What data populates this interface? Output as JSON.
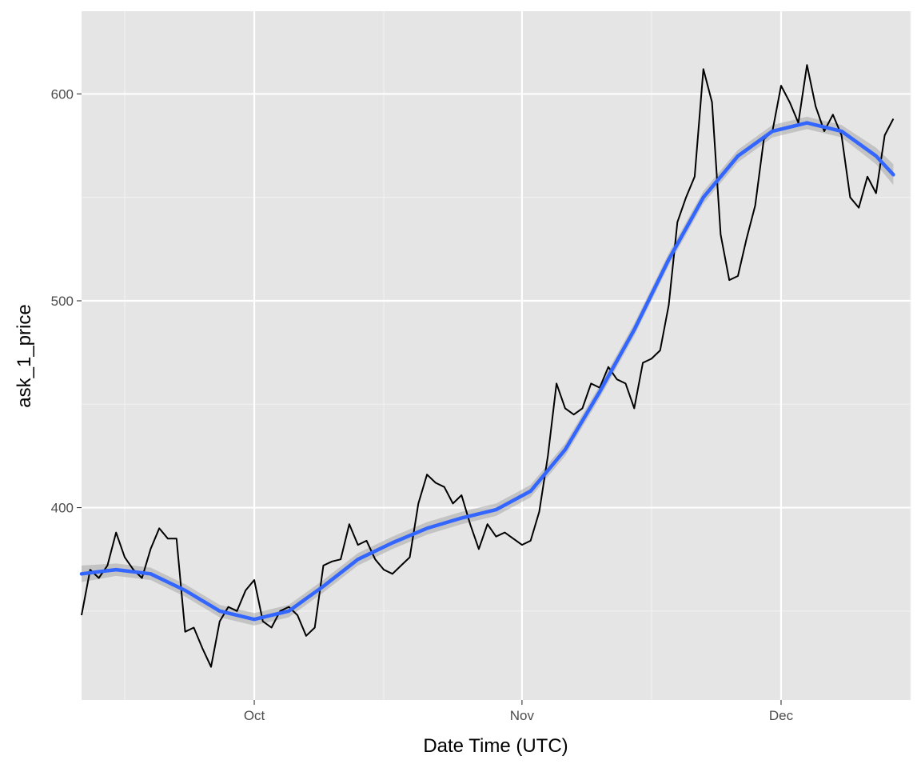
{
  "chart_data": {
    "type": "line",
    "title": "",
    "xlabel": "Date Time (UTC)",
    "ylabel": "ask_1_price",
    "x_range": [
      "2016-09-11",
      "2016-12-16"
    ],
    "ylim": [
      307,
      640
    ],
    "x_ticks": [
      {
        "label": "Oct",
        "date": "2016-10-01"
      },
      {
        "label": "Nov",
        "date": "2016-11-01"
      },
      {
        "label": "Dec",
        "date": "2016-12-01"
      }
    ],
    "x_minor_ticks": [
      "2016-09-16",
      "2016-10-16",
      "2016-11-16",
      "2016-12-16"
    ],
    "y_ticks": [
      400,
      500,
      600
    ],
    "y_minor_ticks": [
      350,
      450,
      550
    ],
    "grid": true,
    "background": "#E5E5E5",
    "series": [
      {
        "role": "data",
        "color": "#000000",
        "x": [
          "2016-09-11",
          "2016-09-12",
          "2016-09-13",
          "2016-09-14",
          "2016-09-15",
          "2016-09-16",
          "2016-09-17",
          "2016-09-18",
          "2016-09-19",
          "2016-09-20",
          "2016-09-21",
          "2016-09-22",
          "2016-09-23",
          "2016-09-24",
          "2016-09-25",
          "2016-09-26",
          "2016-09-27",
          "2016-09-28",
          "2016-09-29",
          "2016-09-30",
          "2016-10-01",
          "2016-10-02",
          "2016-10-03",
          "2016-10-04",
          "2016-10-05",
          "2016-10-06",
          "2016-10-07",
          "2016-10-08",
          "2016-10-09",
          "2016-10-10",
          "2016-10-11",
          "2016-10-12",
          "2016-10-13",
          "2016-10-14",
          "2016-10-15",
          "2016-10-16",
          "2016-10-17",
          "2016-10-18",
          "2016-10-19",
          "2016-10-20",
          "2016-10-21",
          "2016-10-22",
          "2016-10-23",
          "2016-10-24",
          "2016-10-25",
          "2016-10-26",
          "2016-10-27",
          "2016-10-28",
          "2016-10-29",
          "2016-10-30",
          "2016-10-31",
          "2016-11-01",
          "2016-11-02",
          "2016-11-03",
          "2016-11-04",
          "2016-11-05",
          "2016-11-06",
          "2016-11-07",
          "2016-11-08",
          "2016-11-09",
          "2016-11-10",
          "2016-11-11",
          "2016-11-12",
          "2016-11-13",
          "2016-11-14",
          "2016-11-15",
          "2016-11-16",
          "2016-11-17",
          "2016-11-18",
          "2016-11-19",
          "2016-11-20",
          "2016-11-21",
          "2016-11-22",
          "2016-11-23",
          "2016-11-24",
          "2016-11-25",
          "2016-11-26",
          "2016-11-27",
          "2016-11-28",
          "2016-11-29",
          "2016-11-30",
          "2016-12-01",
          "2016-12-02",
          "2016-12-03",
          "2016-12-04",
          "2016-12-05",
          "2016-12-06",
          "2016-12-07",
          "2016-12-08",
          "2016-12-09",
          "2016-12-10",
          "2016-12-11",
          "2016-12-12",
          "2016-12-13",
          "2016-12-14"
        ],
        "y": [
          348,
          370,
          366,
          372,
          388,
          376,
          370,
          366,
          380,
          390,
          385,
          385,
          340,
          342,
          332,
          323,
          345,
          352,
          350,
          360,
          365,
          345,
          342,
          350,
          352,
          348,
          338,
          342,
          372,
          374,
          375,
          392,
          382,
          384,
          375,
          370,
          368,
          372,
          376,
          402,
          416,
          412,
          410,
          402,
          406,
          392,
          380,
          392,
          386,
          388,
          385,
          382,
          384,
          398,
          425,
          460,
          448,
          445,
          448,
          460,
          458,
          468,
          462,
          460,
          448,
          470,
          472,
          476,
          498,
          538,
          550,
          560,
          612,
          596,
          532,
          510,
          512,
          530,
          546,
          578,
          582,
          604,
          596,
          586,
          614,
          594,
          582,
          590,
          580,
          550,
          545,
          560,
          552,
          580,
          588
        ]
      },
      {
        "role": "smooth-fit",
        "color": "#3366FF",
        "band_color": "#999999",
        "x": [
          "2016-09-11",
          "2016-09-15",
          "2016-09-19",
          "2016-09-23",
          "2016-09-27",
          "2016-10-01",
          "2016-10-05",
          "2016-10-09",
          "2016-10-13",
          "2016-10-17",
          "2016-10-21",
          "2016-10-25",
          "2016-10-29",
          "2016-11-02",
          "2016-11-06",
          "2016-11-10",
          "2016-11-14",
          "2016-11-18",
          "2016-11-22",
          "2016-11-26",
          "2016-11-30",
          "2016-12-04",
          "2016-12-08",
          "2016-12-12",
          "2016-12-14"
        ],
        "y": [
          368,
          370,
          368,
          360,
          350,
          346,
          350,
          362,
          375,
          383,
          390,
          395,
          399,
          408,
          428,
          456,
          486,
          520,
          550,
          570,
          582,
          586,
          582,
          570,
          561
        ],
        "band_halfwidth": [
          4,
          3,
          3,
          3,
          3,
          3,
          3,
          3,
          3,
          3,
          3,
          3,
          3,
          3,
          3,
          3,
          3,
          3,
          3,
          3,
          3,
          3,
          3,
          4,
          5
        ]
      }
    ]
  }
}
